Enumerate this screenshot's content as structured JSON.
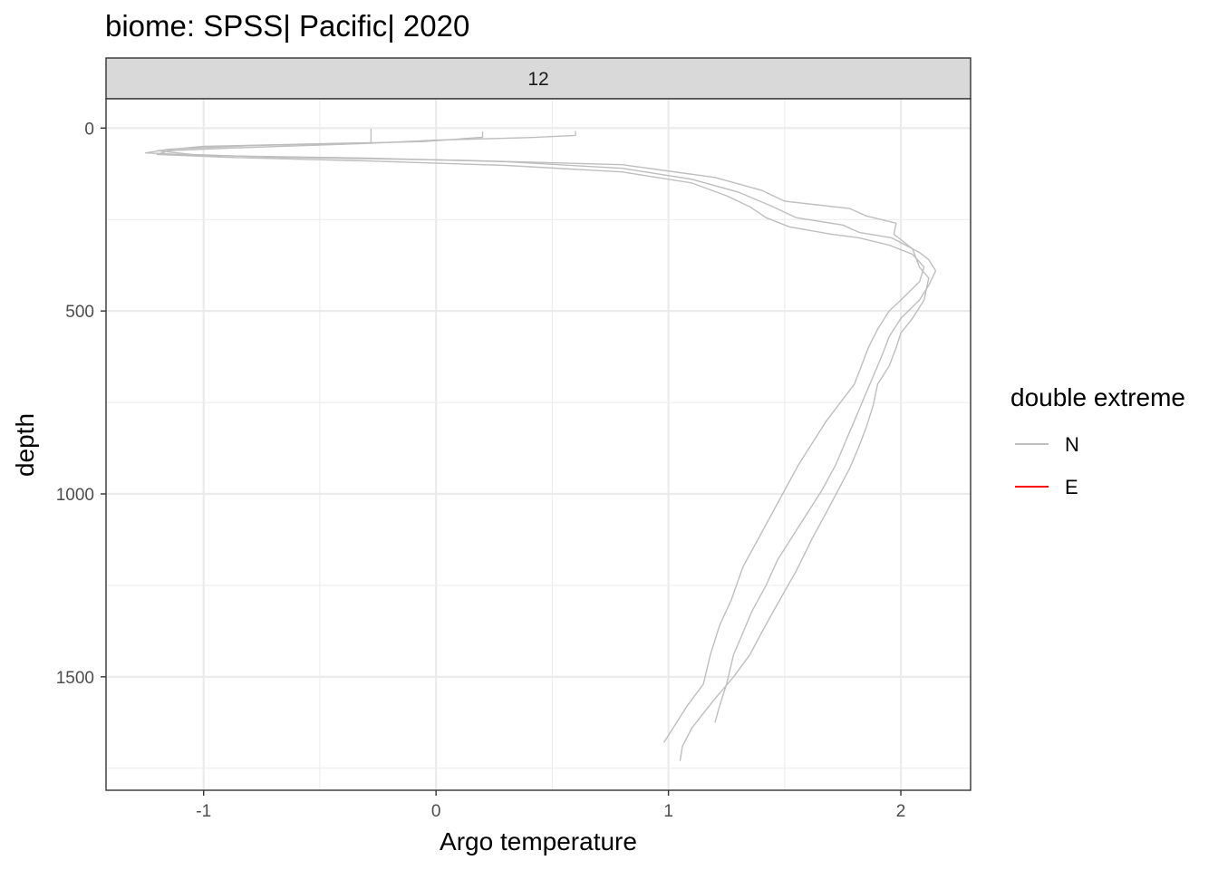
{
  "chart_data": {
    "type": "line",
    "title": "biome: SPSS| Pacific| 2020",
    "facet_label": "12",
    "xlabel": "Argo temperature",
    "ylabel": "depth",
    "xlim": [
      -1.42,
      2.3
    ],
    "ylim": [
      1810,
      -80
    ],
    "y_reversed": true,
    "x_ticks": [
      -1,
      0,
      1,
      2
    ],
    "x_tick_labels": [
      "-1",
      "0",
      "1",
      "2"
    ],
    "y_ticks": [
      0,
      500,
      1000,
      1500
    ],
    "y_tick_labels": [
      "0",
      "500",
      "1000",
      "1500"
    ],
    "grid": true,
    "legend": {
      "title": "double extreme",
      "position": "right",
      "entries": [
        {
          "label": "N",
          "color": "#bebebe"
        },
        {
          "label": "E",
          "color": "#ff0000"
        }
      ]
    },
    "series": [
      {
        "double_extreme": "N",
        "color": "#bebebe",
        "points": [
          [
            -0.28,
            2
          ],
          [
            -0.28,
            40
          ],
          [
            -1.0,
            50
          ],
          [
            -1.2,
            62
          ],
          [
            -1.05,
            72
          ],
          [
            -0.7,
            80
          ],
          [
            0.1,
            88
          ],
          [
            0.8,
            100
          ],
          [
            1.2,
            135
          ],
          [
            1.4,
            170
          ],
          [
            1.5,
            200
          ],
          [
            1.78,
            220
          ],
          [
            1.85,
            240
          ],
          [
            1.98,
            260
          ],
          [
            1.97,
            290
          ],
          [
            2.05,
            330
          ],
          [
            2.08,
            380
          ],
          [
            2.12,
            410
          ],
          [
            2.1,
            470
          ],
          [
            2.05,
            520
          ],
          [
            2.0,
            560
          ],
          [
            1.98,
            600
          ],
          [
            1.95,
            650
          ],
          [
            1.9,
            700
          ],
          [
            1.88,
            760
          ],
          [
            1.85,
            820
          ],
          [
            1.82,
            870
          ],
          [
            1.78,
            930
          ],
          [
            1.73,
            990
          ],
          [
            1.68,
            1050
          ],
          [
            1.62,
            1120
          ],
          [
            1.55,
            1210
          ],
          [
            1.47,
            1300
          ],
          [
            1.4,
            1380
          ],
          [
            1.35,
            1440
          ],
          [
            1.28,
            1500
          ],
          [
            1.2,
            1560
          ],
          [
            1.15,
            1600
          ],
          [
            1.1,
            1640
          ],
          [
            1.06,
            1690
          ],
          [
            1.05,
            1730
          ]
        ]
      },
      {
        "double_extreme": "N",
        "color": "#bebebe",
        "points": [
          [
            0.2,
            10
          ],
          [
            0.2,
            25
          ],
          [
            -0.05,
            37
          ],
          [
            -0.8,
            48
          ],
          [
            -1.15,
            58
          ],
          [
            -1.25,
            68
          ],
          [
            -1.0,
            75
          ],
          [
            -0.3,
            82
          ],
          [
            0.3,
            92
          ],
          [
            0.8,
            110
          ],
          [
            1.1,
            140
          ],
          [
            1.3,
            175
          ],
          [
            1.45,
            215
          ],
          [
            1.55,
            245
          ],
          [
            1.68,
            258
          ],
          [
            1.75,
            265
          ],
          [
            1.82,
            285
          ],
          [
            1.96,
            300
          ],
          [
            2.08,
            340
          ],
          [
            2.12,
            360
          ],
          [
            2.15,
            390
          ],
          [
            2.12,
            430
          ],
          [
            2.08,
            470
          ],
          [
            2.0,
            520
          ],
          [
            1.95,
            570
          ],
          [
            1.92,
            620
          ],
          [
            1.88,
            680
          ],
          [
            1.84,
            740
          ],
          [
            1.8,
            800
          ],
          [
            1.76,
            860
          ],
          [
            1.72,
            920
          ],
          [
            1.66,
            990
          ],
          [
            1.6,
            1050
          ],
          [
            1.53,
            1120
          ],
          [
            1.47,
            1180
          ],
          [
            1.42,
            1250
          ],
          [
            1.36,
            1320
          ],
          [
            1.32,
            1380
          ],
          [
            1.28,
            1440
          ],
          [
            1.25,
            1520
          ],
          [
            1.22,
            1580
          ],
          [
            1.2,
            1625
          ]
        ]
      },
      {
        "double_extreme": "N",
        "color": "#bebebe",
        "points": [
          [
            0.6,
            8
          ],
          [
            0.6,
            20
          ],
          [
            0.4,
            26
          ],
          [
            0.0,
            33
          ],
          [
            -0.3,
            42
          ],
          [
            -0.9,
            55
          ],
          [
            -1.15,
            62
          ],
          [
            -1.2,
            72
          ],
          [
            -0.9,
            80
          ],
          [
            -0.3,
            90
          ],
          [
            0.3,
            102
          ],
          [
            0.8,
            120
          ],
          [
            1.1,
            150
          ],
          [
            1.25,
            185
          ],
          [
            1.35,
            215
          ],
          [
            1.42,
            245
          ],
          [
            1.52,
            270
          ],
          [
            1.7,
            290
          ],
          [
            1.82,
            300
          ],
          [
            1.95,
            320
          ],
          [
            2.05,
            345
          ],
          [
            2.1,
            380
          ],
          [
            2.08,
            420
          ],
          [
            2.0,
            470
          ],
          [
            1.95,
            500
          ],
          [
            1.9,
            550
          ],
          [
            1.86,
            600
          ],
          [
            1.83,
            650
          ],
          [
            1.8,
            700
          ],
          [
            1.74,
            750
          ],
          [
            1.68,
            800
          ],
          [
            1.62,
            860
          ],
          [
            1.56,
            920
          ],
          [
            1.5,
            990
          ],
          [
            1.44,
            1060
          ],
          [
            1.38,
            1130
          ],
          [
            1.32,
            1200
          ],
          [
            1.27,
            1290
          ],
          [
            1.22,
            1360
          ],
          [
            1.18,
            1440
          ],
          [
            1.15,
            1520
          ],
          [
            1.08,
            1580
          ],
          [
            1.02,
            1640
          ],
          [
            0.98,
            1680
          ]
        ]
      }
    ]
  }
}
